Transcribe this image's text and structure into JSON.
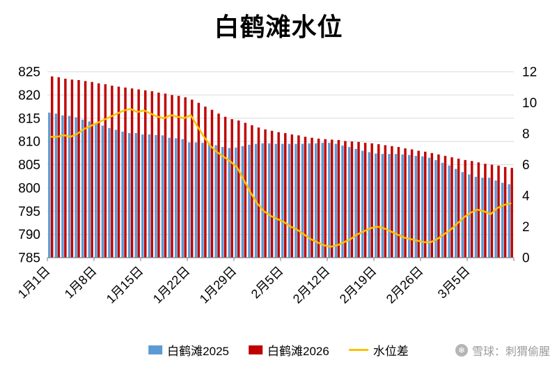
{
  "title": "白鹤滩水位",
  "legend": [
    {
      "label": "白鹤滩2025",
      "color": "#5B9BD5",
      "type": "bar"
    },
    {
      "label": "白鹤滩2026",
      "color": "#C00000",
      "type": "bar"
    },
    {
      "label": "水位差",
      "color": "#FFC000",
      "type": "line"
    }
  ],
  "watermark": {
    "icon": "xueqiu-logo",
    "icon_glyph": "❄",
    "text": "雪球：刺猬偷腥"
  },
  "chart_data": {
    "type": "bar",
    "title": "白鹤滩水位",
    "grid": true,
    "legend_position": "bottom",
    "left_axis": {
      "min": 785,
      "max": 825,
      "step": 5,
      "ticks": [
        785,
        790,
        795,
        800,
        805,
        810,
        815,
        820,
        825
      ]
    },
    "right_axis": {
      "min": 0,
      "max": 12,
      "step": 2,
      "ticks": [
        0,
        2,
        4,
        6,
        8,
        10,
        12
      ]
    },
    "x": [
      "1月1日",
      "1月2日",
      "1月3日",
      "1月4日",
      "1月5日",
      "1月6日",
      "1月7日",
      "1月8日",
      "1月9日",
      "1月10日",
      "1月11日",
      "1月12日",
      "1月13日",
      "1月14日",
      "1月15日",
      "1月16日",
      "1月17日",
      "1月18日",
      "1月19日",
      "1月20日",
      "1月21日",
      "1月22日",
      "1月23日",
      "1月24日",
      "1月25日",
      "1月26日",
      "1月27日",
      "1月28日",
      "1月29日",
      "1月30日",
      "1月31日",
      "2月1日",
      "2月2日",
      "2月3日",
      "2月4日",
      "2月5日",
      "2月6日",
      "2月7日",
      "2月8日",
      "2月9日",
      "2月10日",
      "2月11日",
      "2月12日",
      "2月13日",
      "2月14日",
      "2月15日",
      "2月16日",
      "2月17日",
      "2月18日",
      "2月19日",
      "2月20日",
      "2月21日",
      "2月22日",
      "2月23日",
      "2月24日",
      "2月25日",
      "2月26日",
      "2月27日",
      "2月28日",
      "3月1日",
      "3月2日",
      "3月3日",
      "3月4日",
      "3月5日",
      "3月6日",
      "3月7日",
      "3月8日",
      "3月9日",
      "3月10日",
      "3月11日"
    ],
    "x_ticks": [
      {
        "index": 0,
        "label": "1月1日"
      },
      {
        "index": 7,
        "label": "1月8日"
      },
      {
        "index": 14,
        "label": "1月15日"
      },
      {
        "index": 21,
        "label": "1月22日"
      },
      {
        "index": 28,
        "label": "1月29日"
      },
      {
        "index": 35,
        "label": "2月5日"
      },
      {
        "index": 42,
        "label": "2月12日"
      },
      {
        "index": 49,
        "label": "2月19日"
      },
      {
        "index": 56,
        "label": "2月26日"
      },
      {
        "index": 63,
        "label": "3月5日"
      }
    ],
    "series": [
      {
        "name": "白鹤滩2025",
        "type": "bar",
        "axis": "left",
        "color": "#5B9BD5",
        "values": [
          816.2,
          816.0,
          815.6,
          815.5,
          815.2,
          814.7,
          814.3,
          813.8,
          813.4,
          812.9,
          812.5,
          812.1,
          811.8,
          811.8,
          811.5,
          811.5,
          811.4,
          811.3,
          810.8,
          810.7,
          810.5,
          809.8,
          809.8,
          809.7,
          809.6,
          809.2,
          808.8,
          808.6,
          808.7,
          809.0,
          809.3,
          809.5,
          809.6,
          809.6,
          809.5,
          809.5,
          809.5,
          809.5,
          809.5,
          809.6,
          809.6,
          809.7,
          809.7,
          809.5,
          809.1,
          808.8,
          808.4,
          808.0,
          807.7,
          807.4,
          807.3,
          807.3,
          807.3,
          807.2,
          807.1,
          806.9,
          806.8,
          806.5,
          806.0,
          805.4,
          804.8,
          804.1,
          803.4,
          802.9,
          802.4,
          802.2,
          802.2,
          801.6,
          801.1,
          800.8
        ]
      },
      {
        "name": "白鹤滩2026",
        "type": "bar",
        "axis": "left",
        "color": "#C00000",
        "values": [
          824.0,
          823.8,
          823.5,
          823.3,
          823.2,
          823.0,
          822.8,
          822.5,
          822.3,
          822.0,
          821.8,
          821.6,
          821.4,
          821.2,
          821.0,
          820.8,
          820.5,
          820.3,
          820.0,
          819.8,
          819.5,
          819.0,
          818.3,
          817.5,
          816.8,
          816.0,
          815.3,
          814.8,
          814.5,
          814.0,
          813.5,
          813.0,
          812.6,
          812.3,
          812.0,
          811.8,
          811.5,
          811.3,
          811.0,
          810.8,
          810.6,
          810.5,
          810.4,
          810.3,
          810.1,
          810.0,
          809.9,
          809.7,
          809.6,
          809.4,
          809.2,
          809.0,
          808.8,
          808.5,
          808.3,
          808.0,
          807.8,
          807.5,
          807.2,
          806.9,
          806.6,
          806.3,
          806.0,
          805.8,
          805.5,
          805.2,
          805.0,
          804.8,
          804.5,
          804.3
        ]
      },
      {
        "name": "水位差",
        "type": "line",
        "axis": "right",
        "color": "#FFC000",
        "values": [
          7.8,
          7.8,
          7.9,
          7.8,
          8.0,
          8.3,
          8.5,
          8.7,
          8.9,
          9.1,
          9.3,
          9.5,
          9.6,
          9.4,
          9.5,
          9.3,
          9.1,
          9.0,
          9.2,
          9.1,
          9.0,
          9.2,
          8.5,
          7.8,
          7.2,
          6.8,
          6.5,
          6.2,
          5.8,
          5.0,
          4.2,
          3.5,
          3.0,
          2.7,
          2.5,
          2.3,
          2.0,
          1.8,
          1.5,
          1.2,
          1.0,
          0.8,
          0.7,
          0.8,
          1.0,
          1.2,
          1.5,
          1.7,
          1.9,
          2.0,
          1.9,
          1.7,
          1.5,
          1.3,
          1.2,
          1.1,
          1.0,
          1.0,
          1.2,
          1.5,
          1.8,
          2.2,
          2.6,
          2.9,
          3.1,
          3.0,
          2.8,
          3.2,
          3.4,
          3.5
        ]
      }
    ]
  }
}
